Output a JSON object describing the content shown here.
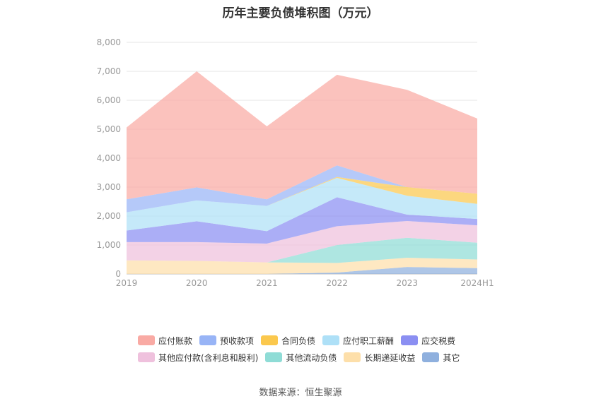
{
  "chart_data": {
    "type": "area",
    "title": "历年主要负债堆积图（万元）",
    "x": [
      "2019",
      "2020",
      "2021",
      "2022",
      "2023",
      "2024H1"
    ],
    "yticks": [
      "0",
      "1,000",
      "2,000",
      "3,000",
      "4,000",
      "5,000",
      "6,000",
      "7,000",
      "8,000"
    ],
    "ylim": [
      0,
      8000
    ],
    "stacked": true,
    "grid": true,
    "legend_position": "bottom",
    "series": [
      {
        "name": "其它",
        "color": "#8fb0de",
        "values": [
          0,
          0,
          0,
          50,
          240,
          200
        ]
      },
      {
        "name": "长期递延收益",
        "color": "#fddfaa",
        "values": [
          470,
          450,
          400,
          330,
          320,
          300
        ]
      },
      {
        "name": "其他流动负债",
        "color": "#8fdcd6",
        "values": [
          0,
          0,
          0,
          620,
          690,
          580
        ]
      },
      {
        "name": "其他应付款(含利息和股利)",
        "color": "#efc1dd",
        "values": [
          630,
          650,
          650,
          650,
          580,
          600
        ]
      },
      {
        "name": "应交税费",
        "color": "#8b8ff2",
        "values": [
          400,
          720,
          430,
          1000,
          220,
          220
        ]
      },
      {
        "name": "应付职工薪酬",
        "color": "#aee0f7",
        "values": [
          630,
          720,
          870,
          670,
          650,
          520
        ]
      },
      {
        "name": "合同负债",
        "color": "#fbc84d",
        "values": [
          0,
          0,
          0,
          30,
          300,
          350
        ]
      },
      {
        "name": "预收款项",
        "color": "#98b4f6",
        "values": [
          450,
          450,
          230,
          400,
          0,
          0
        ]
      },
      {
        "name": "应付账款",
        "color": "#f9aaa4",
        "values": [
          2480,
          4010,
          2520,
          3130,
          3360,
          2600
        ]
      }
    ]
  },
  "legend": {
    "row1": [
      "应付账款",
      "预收款项",
      "合同负债",
      "应付职工薪酬",
      "应交税费"
    ],
    "row2": [
      "其他应付款(含利息和股利)",
      "其他流动负债",
      "长期递延收益",
      "其它"
    ]
  },
  "source": "数据来源：恒生聚源"
}
